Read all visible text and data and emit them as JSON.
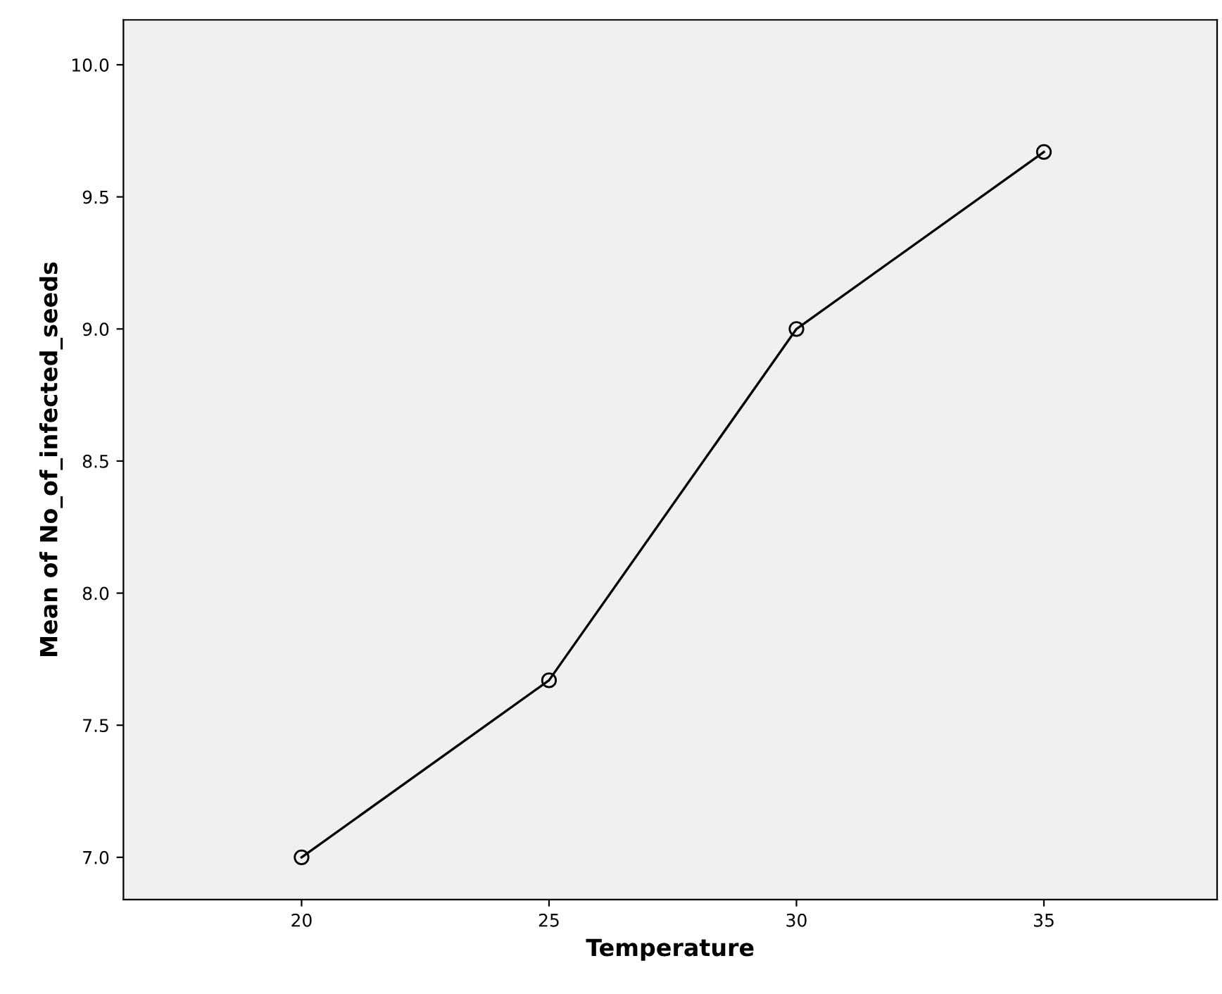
{
  "chart_data": {
    "type": "line",
    "xlabel": "Temperature",
    "ylabel": "Mean of No_of_infected_seeds",
    "x": [
      20,
      25,
      30,
      35
    ],
    "series": [
      {
        "color": "#000000",
        "values": [
          7.0,
          7.67,
          9.0,
          9.67
        ]
      }
    ],
    "xlim": [
      16.4,
      38.5
    ],
    "xticks": [
      20,
      25,
      30,
      35
    ],
    "ylim": [
      6.84,
      10.17
    ],
    "yticks": [
      {
        "value": 7.0,
        "label": "7.0"
      },
      {
        "value": 7.5,
        "label": "7.5"
      },
      {
        "value": 8.0,
        "label": "8.0"
      },
      {
        "value": 8.5,
        "label": "8.5"
      },
      {
        "value": 9.0,
        "label": "9.0"
      },
      {
        "value": 9.5,
        "label": "9.5"
      },
      {
        "value": 10.0,
        "label": "10.0"
      }
    ],
    "marker": "circle",
    "line_style": "solid",
    "grid": false,
    "legend": false
  }
}
